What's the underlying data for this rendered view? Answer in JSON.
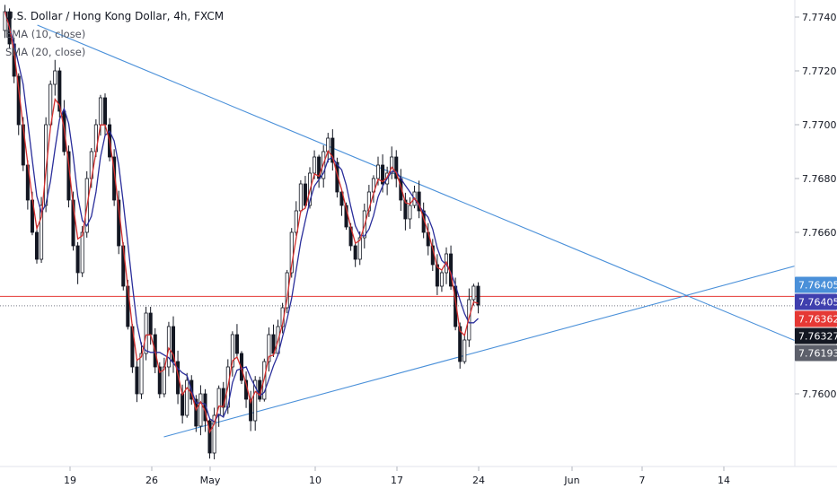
{
  "header": {
    "symbol_title": "U.S. Dollar / Hong Kong Dollar, 4h, FXCM",
    "indicator_1": "EMA (10, close)",
    "indicator_2": "SMA (20, close)"
  },
  "colors": {
    "background": "#ffffff",
    "candle": "#131722",
    "ema": "#d32f2f",
    "sma": "#2a2e9b",
    "trendline": "#4a90d9",
    "red_hline": "#e53935",
    "grey_hline": "#787b86",
    "tag_blue": "#3f3fae"
  },
  "chart_data": {
    "type": "candlestick",
    "x_ticks": [
      "19",
      "26",
      "May",
      "10",
      "17",
      "24",
      "Jun",
      "7",
      "14"
    ],
    "y_ticks": [
      "7.77400",
      "7.77200",
      "7.77000",
      "7.76800",
      "7.76600",
      "7.76000"
    ],
    "price_tags": [
      {
        "label": "7.76405",
        "value": 7.76405,
        "style": "trend"
      },
      {
        "label": "7.76405",
        "value": 7.76405,
        "style": "sma"
      },
      {
        "label": "7.76362",
        "value": 7.76362,
        "style": "ema"
      },
      {
        "label": "7.76327",
        "value": 7.76327,
        "style": "last"
      },
      {
        "label": "7.76193",
        "value": 7.76193,
        "style": "trend-low"
      }
    ],
    "horizontal_lines": [
      {
        "value": 7.76362,
        "color": "red"
      },
      {
        "value": 7.76327,
        "color": "grey"
      }
    ],
    "trendlines": [
      {
        "from": {
          "t": 2.0,
          "v": 7.7737
        },
        "to": {
          "t": 46.0,
          "v": 7.7619
        }
      },
      {
        "from": {
          "t": 9.3,
          "v": 7.7584
        },
        "to": {
          "t": 46.0,
          "v": 7.7648
        }
      }
    ],
    "closes": [
      7.7735,
      7.7742,
      7.773,
      7.7718,
      7.77,
      7.7685,
      7.7672,
      7.766,
      7.765,
      7.767,
      7.77,
      7.7715,
      7.772,
      7.7705,
      7.769,
      7.7672,
      7.7655,
      7.7645,
      7.766,
      7.768,
      7.769,
      7.77,
      7.771,
      7.77,
      7.7688,
      7.7672,
      7.7655,
      7.764,
      7.7625,
      7.761,
      7.76,
      7.7615,
      7.763,
      7.7622,
      7.761,
      7.76,
      7.761,
      7.7625,
      7.7612,
      7.76,
      7.7592,
      7.7605,
      7.7598,
      7.7588,
      7.76,
      7.759,
      7.7578,
      7.7592,
      7.7602,
      7.7595,
      7.761,
      7.7622,
      7.7615,
      7.7605,
      7.7598,
      7.759,
      7.7605,
      7.7598,
      7.7612,
      7.7622,
      7.7615,
      7.7625,
      7.7632,
      7.7645,
      7.766,
      7.7668,
      7.7678,
      7.767,
      7.7682,
      7.7688,
      7.768,
      7.769,
      7.7695,
      7.7686,
      7.7675,
      7.767,
      7.7662,
      7.7655,
      7.765,
      7.7658,
      7.7668,
      7.7675,
      7.768,
      7.7685,
      7.7678,
      7.7682,
      7.7688,
      7.768,
      7.7672,
      7.7665,
      7.767,
      7.7675,
      7.7668,
      7.766,
      7.7655,
      7.7648,
      7.764,
      7.7645,
      7.7652,
      7.764,
      7.7625,
      7.7612,
      7.762,
      7.7635,
      7.764,
      7.7633
    ]
  }
}
